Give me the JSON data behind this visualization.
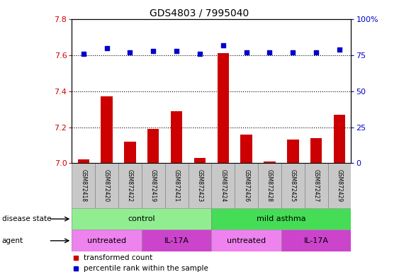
{
  "title": "GDS4803 / 7995040",
  "samples": [
    "GSM872418",
    "GSM872420",
    "GSM872422",
    "GSM872419",
    "GSM872421",
    "GSM872423",
    "GSM872424",
    "GSM872426",
    "GSM872428",
    "GSM872425",
    "GSM872427",
    "GSM872429"
  ],
  "red_values": [
    7.02,
    7.37,
    7.12,
    7.19,
    7.29,
    7.03,
    7.61,
    7.16,
    7.01,
    7.13,
    7.14,
    7.27
  ],
  "blue_values": [
    76,
    80,
    77,
    78,
    78,
    76,
    82,
    77,
    77,
    77,
    77,
    79
  ],
  "ylim_left": [
    7.0,
    7.8
  ],
  "ylim_right": [
    0,
    100
  ],
  "yticks_left": [
    7.0,
    7.2,
    7.4,
    7.6,
    7.8
  ],
  "yticks_right": [
    0,
    25,
    50,
    75,
    100
  ],
  "disease_state_groups": [
    {
      "label": "control",
      "start": 0,
      "end": 6,
      "color": "#90EE90"
    },
    {
      "label": "mild asthma",
      "start": 6,
      "end": 12,
      "color": "#44DD55"
    }
  ],
  "agent_groups": [
    {
      "label": "untreated",
      "start": 0,
      "end": 3,
      "color": "#EE82EE"
    },
    {
      "label": "IL-17A",
      "start": 3,
      "end": 6,
      "color": "#CC44CC"
    },
    {
      "label": "untreated",
      "start": 6,
      "end": 9,
      "color": "#EE82EE"
    },
    {
      "label": "IL-17A",
      "start": 9,
      "end": 12,
      "color": "#CC44CC"
    }
  ],
  "legend_red": "transformed count",
  "legend_blue": "percentile rank within the sample",
  "bar_color": "#CC0000",
  "dot_color": "#0000CC",
  "label_disease": "disease state",
  "label_agent": "agent",
  "bar_width": 0.5,
  "dot_size": 18,
  "ytick_dotted": [
    7.2,
    7.4,
    7.6
  ],
  "sample_box_color": "#C8C8C8",
  "fig_bg": "white",
  "tick_color_left": "#CC0000",
  "tick_color_right": "#0000CC"
}
